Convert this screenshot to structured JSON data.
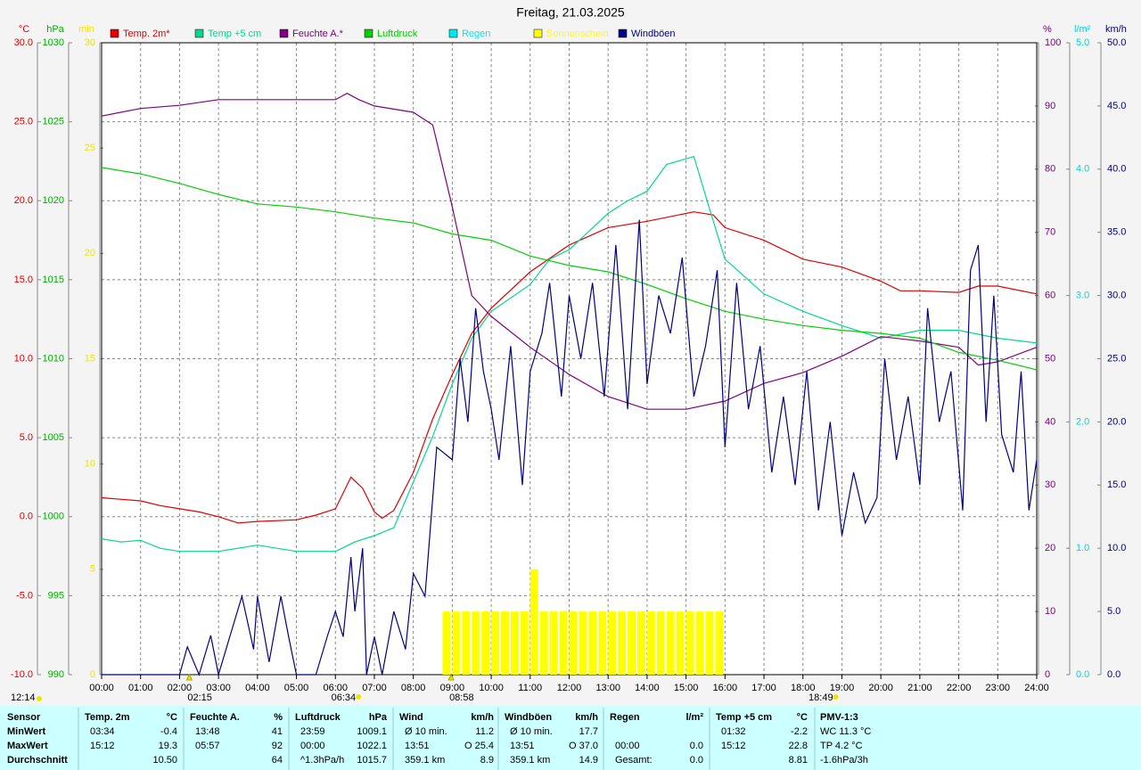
{
  "chart_data": {
    "type": "line",
    "title": "Freitag, 21.03.2025",
    "xlim": [
      0,
      24
    ],
    "xticks": [
      {
        "value": 0,
        "label": "00:00"
      },
      {
        "value": 1,
        "label": "01:00"
      },
      {
        "value": 2,
        "label": "02:00"
      },
      {
        "value": 3,
        "label": "03:00"
      },
      {
        "value": 4,
        "label": "04:00"
      },
      {
        "value": 5,
        "label": "05:00"
      },
      {
        "value": 6,
        "label": "06:00"
      },
      {
        "value": 7,
        "label": "07:00"
      },
      {
        "value": 8,
        "label": "08:00"
      },
      {
        "value": 9,
        "label": "09:00"
      },
      {
        "value": 10,
        "label": "10:00"
      },
      {
        "value": 11,
        "label": "11:00"
      },
      {
        "value": 12,
        "label": "12:00"
      },
      {
        "value": 13,
        "label": "13:00"
      },
      {
        "value": 14,
        "label": "14:00"
      },
      {
        "value": 15,
        "label": "15:00"
      },
      {
        "value": 16,
        "label": "16:00"
      },
      {
        "value": 17,
        "label": "17:00"
      },
      {
        "value": 18,
        "label": "18:00"
      },
      {
        "value": 19,
        "label": "19:00"
      },
      {
        "value": 20,
        "label": "20:00"
      },
      {
        "value": 21,
        "label": "21:00"
      },
      {
        "value": 22,
        "label": "22:00"
      },
      {
        "value": 23,
        "label": "23:00"
      },
      {
        "value": 24,
        "label": "24:00"
      }
    ],
    "grid": true,
    "axes": [
      {
        "label": "°C",
        "side": "left",
        "color": "#e00000",
        "ylim": [
          -10,
          30
        ],
        "yticks": [
          {
            "value": -10,
            "label": "-10.0"
          },
          {
            "value": -5,
            "label": "-5.0"
          },
          {
            "value": 0,
            "label": "0.0"
          },
          {
            "value": 5,
            "label": "5.0"
          },
          {
            "value": 10,
            "label": "10.0"
          },
          {
            "value": 15,
            "label": "15.0"
          },
          {
            "value": 20,
            "label": "20.0"
          },
          {
            "value": 25,
            "label": "25.0"
          },
          {
            "value": 30,
            "label": "30.0"
          }
        ]
      },
      {
        "label": "hPa",
        "side": "left",
        "color": "#00b000",
        "ylim": [
          990,
          1030
        ],
        "yticks": [
          990,
          995,
          1000,
          1005,
          1010,
          1015,
          1020,
          1025,
          1030
        ]
      },
      {
        "label": "min",
        "side": "left",
        "color": "#e8e800",
        "ylim": [
          0,
          30
        ],
        "yticks": [
          0,
          5,
          10,
          15,
          20,
          25,
          30
        ]
      },
      {
        "label": "%",
        "side": "right",
        "color": "#800080",
        "ylim": [
          0,
          100
        ],
        "yticks": [
          0,
          10,
          20,
          30,
          40,
          50,
          60,
          70,
          80,
          90,
          100
        ]
      },
      {
        "label": "l/m²",
        "side": "right",
        "color": "#00d8d8",
        "ylim": [
          0,
          5
        ],
        "yticks": [
          {
            "value": 0,
            "label": "0.0"
          },
          {
            "value": 1,
            "label": "1.0"
          },
          {
            "value": 2,
            "label": "2.0"
          },
          {
            "value": 3,
            "label": "3.0"
          },
          {
            "value": 4,
            "label": "4.0"
          },
          {
            "value": 5,
            "label": "5.0"
          }
        ]
      },
      {
        "label": "km/h",
        "side": "right",
        "color": "#000080",
        "ylim": [
          0,
          50
        ],
        "yticks": [
          {
            "value": 0,
            "label": "0.0"
          },
          {
            "value": 5,
            "label": "5.0"
          },
          {
            "value": 10,
            "label": "10.0"
          },
          {
            "value": 15,
            "label": "15.0"
          },
          {
            "value": 20,
            "label": "20.0"
          },
          {
            "value": 25,
            "label": "25.0"
          },
          {
            "value": 30,
            "label": "30.0"
          },
          {
            "value": 35,
            "label": "35.0"
          },
          {
            "value": 40,
            "label": "40.0"
          },
          {
            "value": 45,
            "label": "45.0"
          },
          {
            "value": 50,
            "label": "50.0"
          }
        ]
      }
    ],
    "series": [
      {
        "name": "Temp. 2m*",
        "color": "#e00000",
        "axis": "°C",
        "kind": "line",
        "x": [
          0,
          1,
          1.5,
          2,
          2.5,
          3,
          3.5,
          4,
          5,
          5.5,
          6,
          6.4,
          6.7,
          7,
          7.2,
          7.5,
          8,
          8.5,
          9,
          9.5,
          10,
          11,
          12,
          13,
          14,
          15.2,
          15.7,
          16,
          17,
          18,
          19,
          20,
          20.5,
          21,
          22,
          22.5,
          23,
          24
        ],
        "values": [
          1.2,
          1.0,
          0.7,
          0.5,
          0.3,
          0.0,
          -0.4,
          -0.3,
          -0.2,
          0.1,
          0.5,
          2.5,
          1.8,
          0.3,
          -0.1,
          0.4,
          2.8,
          6.2,
          9.0,
          11.6,
          13.2,
          15.5,
          17.2,
          18.3,
          18.7,
          19.3,
          19.1,
          18.3,
          17.5,
          16.3,
          15.8,
          14.9,
          14.3,
          14.3,
          14.2,
          14.6,
          14.6,
          14.1
        ]
      },
      {
        "name": "Temp +5 cm",
        "color": "#00d890",
        "axis": "°C",
        "kind": "line",
        "x": [
          0,
          0.5,
          1,
          1.5,
          2,
          3,
          4,
          5,
          6,
          6.5,
          7,
          7.5,
          8,
          8.5,
          9,
          9.5,
          10,
          11,
          11.5,
          12,
          13,
          13.5,
          14,
          14.5,
          15.2,
          15.6,
          16,
          16.5,
          17,
          18,
          19,
          20,
          21,
          22,
          23,
          24
        ],
        "values": [
          -1.4,
          -1.6,
          -1.5,
          -2.0,
          -2.2,
          -2.2,
          -1.8,
          -2.2,
          -2.2,
          -1.6,
          -1.2,
          -0.7,
          2.2,
          5.1,
          8.4,
          11.3,
          13.0,
          14.7,
          16.3,
          16.9,
          19.2,
          20.0,
          20.6,
          22.3,
          22.8,
          19.5,
          16.3,
          15.2,
          14.1,
          13.0,
          12.1,
          11.3,
          11.8,
          11.8,
          11.3,
          11.0
        ]
      },
      {
        "name": "Feuchte A.*",
        "color": "#800080",
        "axis": "%",
        "kind": "line",
        "x": [
          0,
          1,
          2,
          3,
          4,
          5,
          6,
          6.3,
          6.6,
          7,
          8,
          8.5,
          9,
          9.5,
          10,
          11,
          12,
          13,
          14,
          15,
          16,
          17,
          18,
          19,
          20,
          21,
          22,
          22.5,
          23,
          24
        ],
        "values": [
          88.4,
          89.6,
          90.1,
          91,
          91,
          91,
          91,
          92,
          91,
          90,
          89,
          87,
          74,
          60,
          56.7,
          51.8,
          47.5,
          44,
          42,
          42,
          43.3,
          46.1,
          47.8,
          50.4,
          53.5,
          52.8,
          51.8,
          49,
          49.5,
          51.8
        ]
      },
      {
        "name": "Luftdruck",
        "color": "#00d000",
        "axis": "hPa",
        "kind": "line",
        "x": [
          0,
          1,
          2,
          3,
          4,
          5,
          6,
          7,
          8,
          9,
          10,
          11,
          12,
          13,
          14,
          15,
          16,
          17,
          18,
          19,
          20,
          21,
          22,
          23,
          24
        ],
        "values": [
          1022.1,
          1021.7,
          1021.1,
          1020.4,
          1019.8,
          1019.6,
          1019.3,
          1018.9,
          1018.6,
          1017.9,
          1017.5,
          1016.5,
          1015.9,
          1015.5,
          1014.7,
          1013.8,
          1013.0,
          1012.5,
          1012.1,
          1011.8,
          1011.6,
          1011.3,
          1010.4,
          1009.9,
          1009.3
        ]
      },
      {
        "name": "Regen",
        "color": "#00e8e8",
        "axis": "l/m²",
        "kind": "line",
        "x": [],
        "values": []
      },
      {
        "name": "Sonnenschein",
        "color": "#ffff00",
        "axis": "min",
        "kind": "bar",
        "x": [
          8.75,
          9,
          9.25,
          9.5,
          9.75,
          10,
          10.25,
          10.5,
          10.75,
          11,
          11.25,
          11.5,
          11.75,
          12,
          12.25,
          12.5,
          12.75,
          13,
          13.25,
          13.5,
          13.75,
          14,
          14.25,
          14.5,
          14.75,
          15,
          15.25,
          15.5,
          15.75
        ],
        "values": [
          3,
          3,
          3,
          3,
          3,
          3,
          3,
          3,
          3,
          5,
          3,
          3,
          3,
          3,
          3,
          3,
          3,
          3,
          3,
          3,
          3,
          3,
          3,
          3,
          3,
          3,
          3,
          3,
          3
        ]
      },
      {
        "name": "Windböen",
        "color": "#000080",
        "axis": "km/h",
        "kind": "line",
        "x": [
          0,
          2,
          2.2,
          2.5,
          2.8,
          3,
          3.3,
          3.6,
          3.9,
          4,
          4.3,
          4.6,
          4.8,
          5,
          5.5,
          5.8,
          6,
          6.2,
          6.4,
          6.5,
          6.7,
          6.8,
          7,
          7.2,
          7.5,
          7.8,
          8,
          8.3,
          8.6,
          9,
          9.2,
          9.4,
          9.6,
          9.8,
          10,
          10.2,
          10.5,
          10.8,
          11,
          11.3,
          11.5,
          11.8,
          12,
          12.3,
          12.6,
          12.9,
          13.2,
          13.5,
          13.8,
          14,
          14.3,
          14.6,
          14.9,
          15.2,
          15.5,
          15.8,
          16,
          16.3,
          16.6,
          16.9,
          17.2,
          17.5,
          17.8,
          18.1,
          18.4,
          18.7,
          19,
          19.3,
          19.6,
          19.9,
          20.1,
          20.4,
          20.7,
          21,
          21.2,
          21.5,
          21.8,
          22.1,
          22.3,
          22.5,
          22.7,
          22.9,
          23.1,
          23.4,
          23.6,
          23.8,
          24
        ],
        "values": [
          0,
          0,
          2.2,
          0,
          3.1,
          0,
          3.1,
          6.2,
          2,
          6.2,
          1,
          6.2,
          3,
          0,
          0,
          3.1,
          5,
          3,
          9.3,
          5,
          10,
          0,
          3,
          0,
          5,
          2,
          8,
          6.2,
          18,
          17,
          25,
          20,
          29,
          24,
          21,
          17,
          26,
          15,
          24,
          27,
          31,
          22,
          30,
          25,
          31,
          22,
          34,
          21,
          36,
          23,
          30,
          27,
          33,
          22,
          26,
          32,
          18,
          31,
          21,
          26,
          16,
          22,
          15,
          24,
          13,
          20,
          11,
          16,
          12,
          14,
          25,
          17,
          22,
          15,
          29,
          20,
          24,
          13,
          32,
          34,
          20,
          30,
          19,
          16,
          24,
          13,
          17
        ]
      }
    ],
    "annotations": [
      {
        "label": "02:15",
        "x": 2.25,
        "marker": "triangle"
      },
      {
        "label": "06:34",
        "x": 6.57,
        "marker": "circle"
      },
      {
        "label": "08:58",
        "x": 8.97,
        "marker": "triangle"
      },
      {
        "label": "18:49",
        "x": 18.82,
        "marker": "circle"
      }
    ],
    "corner_note": "12:14"
  },
  "table": {
    "rows": [
      [
        "Sensor",
        "Temp. 2m",
        "°C",
        "Feuchte A.",
        "%",
        "Luftdruck",
        "hPa",
        "Wind",
        "km/h",
        "Windböen",
        "km/h",
        "Regen",
        "l/m²",
        "Temp +5 cm",
        "°C",
        "PMV-1:3"
      ],
      [
        "MinWert",
        "03:34",
        "-0.4",
        "13:48",
        "41",
        "23:59",
        "1009.1",
        "Ø 10 min.",
        "11.2",
        "Ø 10 min.",
        "17.7",
        null,
        null,
        "01:32",
        "-2.2",
        "WC 11.3 °C"
      ],
      [
        "MaxWert",
        "15:12",
        "19.3",
        "05:57",
        "92",
        "00:00",
        "1022.1",
        "13:51",
        "O 25.4",
        "13:51",
        "O 37.0",
        "00:00",
        "0.0",
        "15:12",
        "22.8",
        "TP 4.2 °C"
      ],
      [
        "Durchschnitt",
        null,
        "10.50",
        null,
        "64",
        "^1.3hPa/h",
        "1015.7",
        "359.1 km",
        "8.9",
        "359.1 km",
        "14.9",
        "Gesamt:",
        "0.0",
        null,
        "8.81",
        "-1.6hPa/3h"
      ]
    ]
  }
}
